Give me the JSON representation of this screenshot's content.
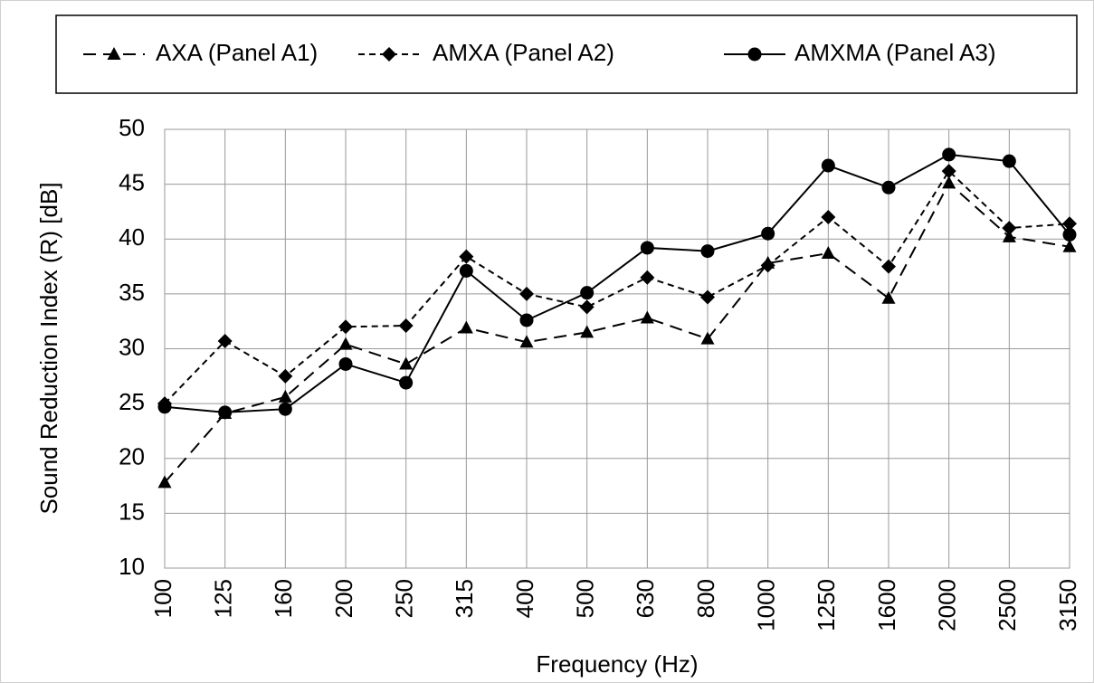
{
  "chart_data": {
    "type": "line",
    "x_label": "Frequency (Hz)",
    "y_label": "Sound Reduction Index (R) [dB]",
    "categories": [
      "100",
      "125",
      "160",
      "200",
      "250",
      "315",
      "400",
      "500",
      "630",
      "800",
      "1000",
      "1250",
      "1600",
      "2000",
      "2500",
      "3150"
    ],
    "series": [
      {
        "name": "AXA (Panel  A1)",
        "color": "#000000",
        "line_style": "dashed",
        "marker": "triangle",
        "values": [
          17.8,
          24.1,
          25.6,
          30.4,
          28.6,
          31.9,
          30.6,
          31.5,
          32.8,
          30.9,
          37.8,
          38.7,
          34.6,
          45.1,
          40.2,
          39.3
        ]
      },
      {
        "name": "AMXA (Panel  A2)",
        "color": "#000000",
        "line_style": "short-dashed",
        "marker": "diamond",
        "values": [
          25.0,
          30.7,
          27.5,
          32.0,
          32.1,
          38.4,
          35.0,
          33.8,
          36.5,
          34.7,
          37.6,
          42.0,
          37.5,
          46.2,
          41.0,
          41.4
        ]
      },
      {
        "name": "AMXMA (Panel  A3)",
        "color": "#000000",
        "line_style": "solid",
        "marker": "circle",
        "values": [
          24.7,
          24.2,
          24.5,
          28.6,
          26.9,
          37.1,
          32.6,
          35.1,
          39.2,
          38.9,
          40.5,
          46.7,
          44.7,
          47.7,
          47.1,
          40.4
        ]
      }
    ],
    "ylim": [
      10,
      50
    ],
    "yticks": [
      10,
      15,
      20,
      25,
      30,
      35,
      40,
      45,
      50
    ],
    "grid": true,
    "legend": "top"
  }
}
